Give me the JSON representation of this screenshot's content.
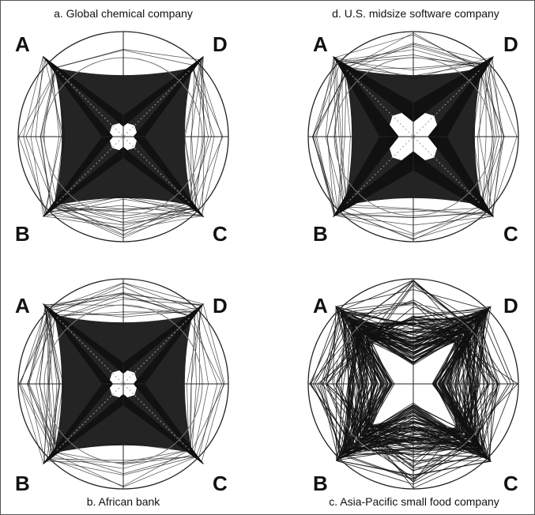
{
  "panels": [
    {
      "id": "a",
      "caption": "a. Global chemical company",
      "quadrant_labels": [
        "A",
        "D",
        "B",
        "C"
      ]
    },
    {
      "id": "d",
      "caption": "d. U.S. midsize software company",
      "quadrant_labels": [
        "A",
        "D",
        "B",
        "C"
      ]
    },
    {
      "id": "b",
      "caption": "b. African bank",
      "quadrant_labels": [
        "A",
        "D",
        "B",
        "C"
      ]
    },
    {
      "id": "c",
      "caption": "c. Asia-Pacific small food company",
      "quadrant_labels": [
        "A",
        "D",
        "B",
        "C"
      ]
    }
  ],
  "colors": {
    "frame_border": "#555555",
    "profile_lines": "#111111",
    "circles": "#222222",
    "text": "#111111"
  }
}
